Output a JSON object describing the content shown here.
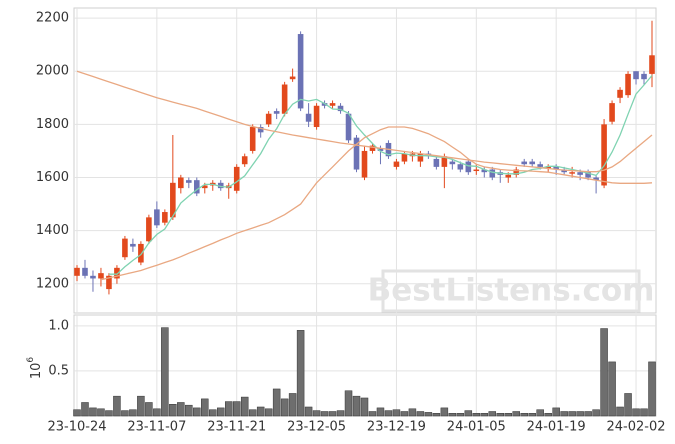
{
  "chart_data": {
    "type": "candlestick",
    "watermark": "BestListens.com",
    "up_color": "#e2491d",
    "down_color": "#6b72b5",
    "volume_color": "#6e6e6e",
    "grid": true,
    "categories": [
      "23-10-24",
      null,
      null,
      null,
      null,
      null,
      null,
      null,
      null,
      null,
      "23-11-07",
      null,
      null,
      null,
      null,
      null,
      null,
      null,
      null,
      null,
      "23-11-21",
      null,
      null,
      null,
      null,
      null,
      null,
      null,
      null,
      null,
      "23-12-05",
      null,
      null,
      null,
      null,
      null,
      null,
      null,
      null,
      null,
      "23-12-19",
      null,
      null,
      null,
      null,
      null,
      null,
      null,
      null,
      null,
      "24-01-05",
      null,
      null,
      null,
      null,
      null,
      null,
      null,
      null,
      null,
      "24-01-19",
      null,
      null,
      null,
      null,
      null,
      null,
      null,
      null,
      null,
      "24-02-02",
      null,
      null
    ],
    "open": [
      1230,
      1260,
      1230,
      1220,
      1180,
      1220,
      1300,
      1350,
      1280,
      1360,
      1480,
      1430,
      1450,
      1560,
      1590,
      1590,
      1560,
      1570,
      1580,
      1560,
      1550,
      1650,
      1700,
      1790,
      1800,
      1850,
      1840,
      1970,
      2140,
      1840,
      1790,
      1880,
      1870,
      1870,
      1840,
      1750,
      1600,
      1700,
      1710,
      1730,
      1640,
      1660,
      1680,
      1660,
      1690,
      1670,
      1640,
      1660,
      1650,
      1660,
      1630,
      1630,
      1630,
      1620,
      1600,
      1610,
      1660,
      1660,
      1650,
      1640,
      1640,
      1630,
      1620,
      1620,
      1620,
      1600,
      1570,
      1810,
      1900,
      1910,
      2000,
      1990,
      1990
    ],
    "high": [
      1270,
      1290,
      1250,
      1260,
      1240,
      1270,
      1380,
      1370,
      1360,
      1460,
      1510,
      1480,
      1760,
      1610,
      1600,
      1600,
      1580,
      1590,
      1590,
      1580,
      1650,
      1690,
      1800,
      1800,
      1850,
      1860,
      1960,
      2010,
      2150,
      1880,
      1880,
      1890,
      1890,
      1880,
      1850,
      1760,
      1720,
      1730,
      1720,
      1740,
      1670,
      1700,
      1700,
      1700,
      1700,
      1680,
      1690,
      1670,
      1660,
      1670,
      1650,
      1640,
      1640,
      1630,
      1620,
      1640,
      1670,
      1670,
      1660,
      1650,
      1650,
      1640,
      1640,
      1630,
      1630,
      1610,
      1820,
      1890,
      1940,
      2000,
      2000,
      2000,
      2190
    ],
    "low": [
      1210,
      1220,
      1170,
      1190,
      1160,
      1200,
      1290,
      1320,
      1270,
      1350,
      1410,
      1420,
      1440,
      1540,
      1560,
      1530,
      1540,
      1550,
      1550,
      1520,
      1540,
      1640,
      1690,
      1750,
      1790,
      1820,
      1830,
      1960,
      1850,
      1790,
      1780,
      1860,
      1860,
      1840,
      1730,
      1620,
      1590,
      1690,
      1650,
      1670,
      1630,
      1650,
      1660,
      1640,
      1670,
      1630,
      1560,
      1630,
      1620,
      1610,
      1610,
      1600,
      1590,
      1580,
      1580,
      1600,
      1640,
      1640,
      1630,
      1620,
      1610,
      1610,
      1600,
      1590,
      1590,
      1540,
      1560,
      1800,
      1880,
      1900,
      1950,
      1950,
      1940
    ],
    "close": [
      1260,
      1230,
      1220,
      1240,
      1230,
      1260,
      1370,
      1340,
      1350,
      1450,
      1420,
      1470,
      1580,
      1600,
      1580,
      1540,
      1570,
      1580,
      1560,
      1570,
      1640,
      1680,
      1790,
      1770,
      1840,
      1840,
      1950,
      1980,
      1860,
      1810,
      1870,
      1870,
      1880,
      1850,
      1740,
      1630,
      1700,
      1720,
      1700,
      1680,
      1660,
      1690,
      1690,
      1690,
      1680,
      1640,
      1680,
      1650,
      1630,
      1620,
      1630,
      1620,
      1600,
      1610,
      1610,
      1630,
      1650,
      1650,
      1640,
      1640,
      1630,
      1620,
      1620,
      1610,
      1600,
      1590,
      1800,
      1880,
      1930,
      1990,
      1970,
      1970,
      2060
    ],
    "moving_averages": [
      {
        "color": "#7fd3b1",
        "values": [
          null,
          null,
          null,
          null,
          1236,
          1236,
          1264,
          1288,
          1310,
          1354,
          1386,
          1406,
          1454,
          1504,
          1530,
          1554,
          1574,
          1574,
          1566,
          1564,
          1584,
          1606,
          1648,
          1690,
          1744,
          1784,
          1838,
          1876,
          1894,
          1888,
          1894,
          1878,
          1858,
          1856,
          1842,
          1794,
          1760,
          1728,
          1698,
          1686,
          1692,
          1690,
          1684,
          1682,
          1682,
          1678,
          1676,
          1668,
          1656,
          1644,
          1642,
          1630,
          1620,
          1616,
          1614,
          1614,
          1620,
          1630,
          1634,
          1642,
          1642,
          1636,
          1630,
          1624,
          1616,
          1608,
          1644,
          1696,
          1760,
          1838,
          1914,
          1948,
          1984
        ]
      },
      {
        "color": "#e9a882",
        "values": [
          null,
          null,
          null,
          1215,
          1222,
          1229,
          1236,
          1243,
          1250,
          1260,
          1270,
          1280,
          1290,
          1302,
          1315,
          1327,
          1340,
          1352,
          1365,
          1377,
          1390,
          1400,
          1410,
          1420,
          1430,
          1445,
          1460,
          1480,
          1500,
          1540,
          1580,
          1610,
          1640,
          1670,
          1700,
          1725,
          1750,
          1765,
          1780,
          1790,
          1790,
          1790,
          1785,
          1775,
          1765,
          1750,
          1735,
          1715,
          1695,
          1670,
          1650,
          1640,
          1635,
          1630,
          1628,
          1626,
          1625,
          1624,
          1622,
          1620,
          1615,
          1610,
          1605,
          1600,
          1595,
          1590,
          1585,
          1580,
          1578,
          1578,
          1578,
          1578,
          1580
        ]
      },
      {
        "color": "#e9a882",
        "values": [
          2000,
          1990,
          1980,
          1970,
          1960,
          1950,
          1940,
          1930,
          1920,
          1910,
          1900,
          1892,
          1884,
          1876,
          1868,
          1860,
          1850,
          1840,
          1830,
          1820,
          1810,
          1800,
          1792,
          1785,
          1778,
          1772,
          1766,
          1760,
          1755,
          1750,
          1745,
          1740,
          1735,
          1730,
          1726,
          1722,
          1718,
          1714,
          1710,
          1706,
          1702,
          1698,
          1694,
          1690,
          1686,
          1682,
          1678,
          1674,
          1670,
          1666,
          1662,
          1658,
          1655,
          1652,
          1649,
          1646,
          1643,
          1640,
          1637,
          1634,
          1631,
          1628,
          1626,
          1624,
          1622,
          1622,
          1628,
          1640,
          1660,
          1685,
          1710,
          1735,
          1760
        ]
      }
    ],
    "ylim": [
      1090,
      2238
    ],
    "yticks": [
      1200,
      1400,
      1600,
      1800,
      2000,
      2200
    ],
    "volume": [
      0.07,
      0.15,
      0.09,
      0.08,
      0.06,
      0.22,
      0.06,
      0.07,
      0.22,
      0.15,
      0.08,
      0.98,
      0.13,
      0.15,
      0.12,
      0.09,
      0.19,
      0.07,
      0.09,
      0.16,
      0.16,
      0.21,
      0.07,
      0.1,
      0.08,
      0.3,
      0.19,
      0.25,
      0.95,
      0.1,
      0.06,
      0.05,
      0.05,
      0.06,
      0.28,
      0.22,
      0.2,
      0.05,
      0.09,
      0.06,
      0.07,
      0.05,
      0.08,
      0.05,
      0.04,
      0.03,
      0.09,
      0.03,
      0.03,
      0.06,
      0.03,
      0.03,
      0.05,
      0.03,
      0.03,
      0.05,
      0.03,
      0.03,
      0.07,
      0.03,
      0.09,
      0.05,
      0.05,
      0.05,
      0.05,
      0.07,
      0.97,
      0.6,
      0.1,
      0.25,
      0.08,
      0.08,
      0.6
    ],
    "volume_ylim": [
      0,
      1.12
    ],
    "volume_yticks": [
      0.5,
      {
        "value": 1,
        "label": "1.0"
      }
    ],
    "volume_axis_label": {
      "base": "10",
      "exponent": "6"
    }
  }
}
